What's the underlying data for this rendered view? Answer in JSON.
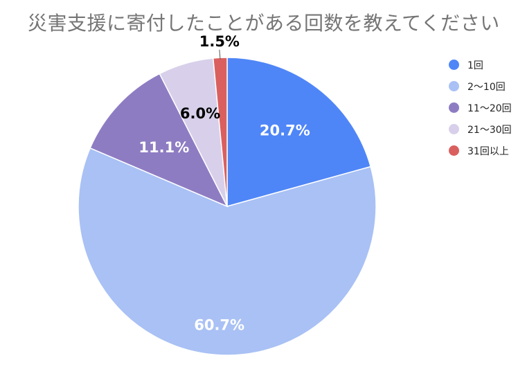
{
  "chart_data": {
    "type": "pie",
    "title": "災害支援に寄付したことがある回数を教えてください",
    "categories": [
      "1回",
      "2〜10回",
      "11〜20回",
      "21〜30回",
      "31回以上"
    ],
    "values": [
      20.7,
      60.7,
      11.1,
      6.0,
      1.5
    ],
    "value_labels": [
      "20.7%",
      "60.7%",
      "11.1%",
      "6.0%",
      "1.5%"
    ],
    "colors": [
      "#4f86f7",
      "#a9c1f4",
      "#8e7cc3",
      "#d8d0ea",
      "#d9605f"
    ],
    "label_colors": [
      "#ffffff",
      "#ffffff",
      "#ffffff",
      "#000000",
      "#000000"
    ],
    "legend_position": "right"
  }
}
